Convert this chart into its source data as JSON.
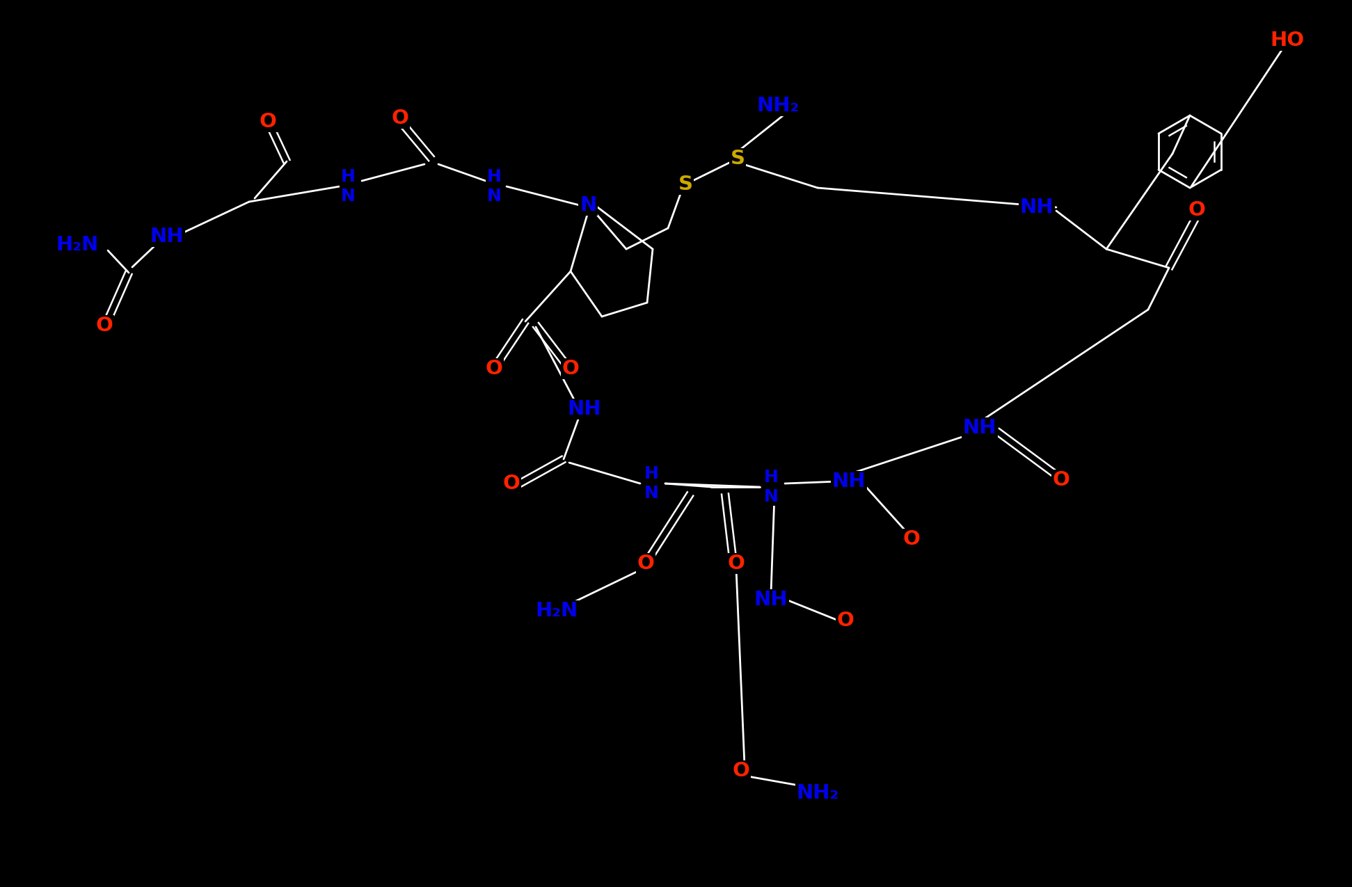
{
  "bg_color": "#000000",
  "bond_color": "#ffffff",
  "atom_colors": {
    "O": "#ff0000",
    "N": "#0000ff",
    "S": "#ccaa00",
    "C": "#ffffff",
    "H": "#ffffff"
  },
  "fig_width": 19.43,
  "fig_height": 12.75,
  "dpi": 100
}
